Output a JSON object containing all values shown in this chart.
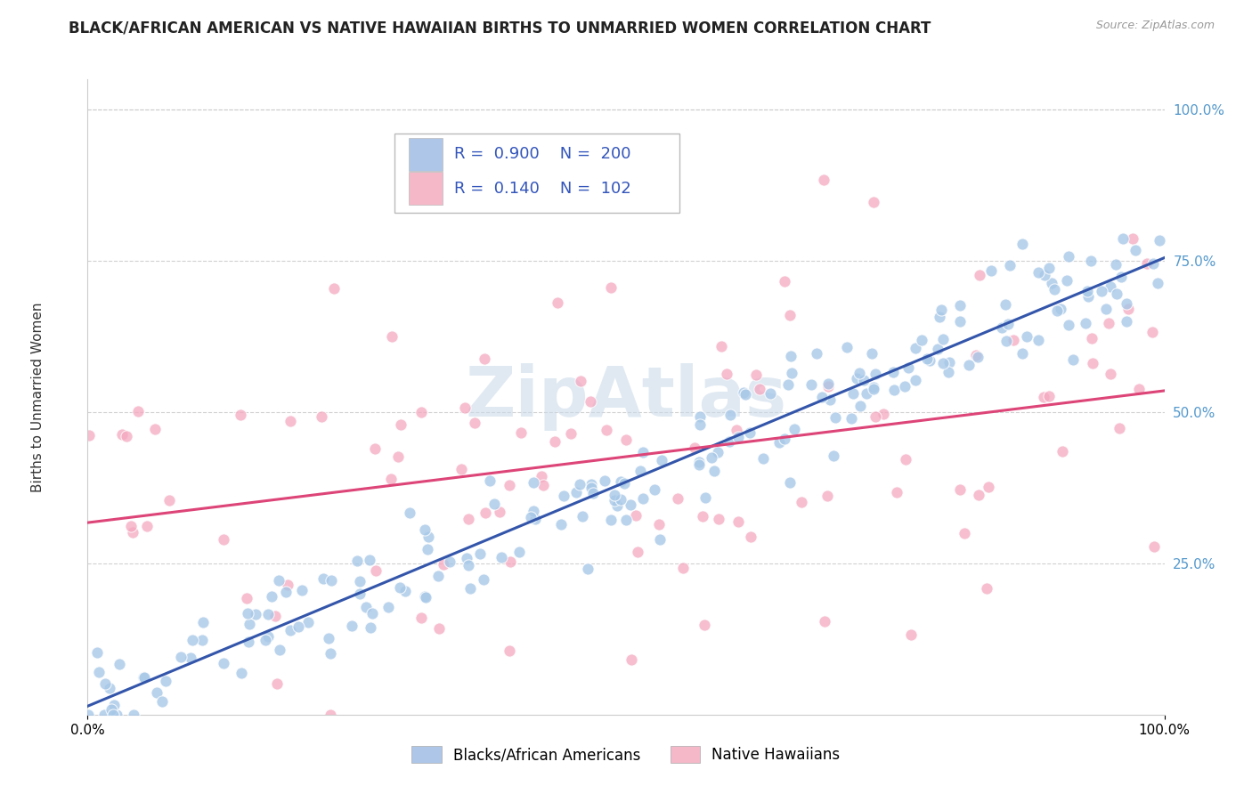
{
  "title": "BLACK/AFRICAN AMERICAN VS NATIVE HAWAIIAN BIRTHS TO UNMARRIED WOMEN CORRELATION CHART",
  "source": "Source: ZipAtlas.com",
  "ylabel": "Births to Unmarried Women",
  "xlim": [
    0.0,
    1.0
  ],
  "ylim": [
    0.0,
    1.05
  ],
  "xtick_positions": [
    0.0,
    1.0
  ],
  "xtick_labels": [
    "0.0%",
    "100.0%"
  ],
  "ytick_positions": [
    0.25,
    0.5,
    0.75,
    1.0
  ],
  "ytick_labels": [
    "25.0%",
    "50.0%",
    "75.0%",
    "100.0%"
  ],
  "legend_entries": [
    {
      "label": "Blacks/African Americans",
      "color": "#aec6e8",
      "R": "0.900",
      "N": "200"
    },
    {
      "label": "Native Hawaiians",
      "color": "#f4b8c8",
      "R": "0.140",
      "N": "102"
    }
  ],
  "blue_scatter_color": "#a8c8e8",
  "pink_scatter_color": "#f4a8c0",
  "blue_line_color": "#3355aa",
  "pink_line_color": "#dd4477",
  "watermark_text": "ZipAtlas",
  "watermark_color": "#c8d8e8",
  "background_color": "#ffffff",
  "title_fontsize": 12,
  "axis_label_fontsize": 11,
  "tick_fontsize": 11,
  "ytick_color": "#5599cc",
  "grid_color": "#cccccc"
}
